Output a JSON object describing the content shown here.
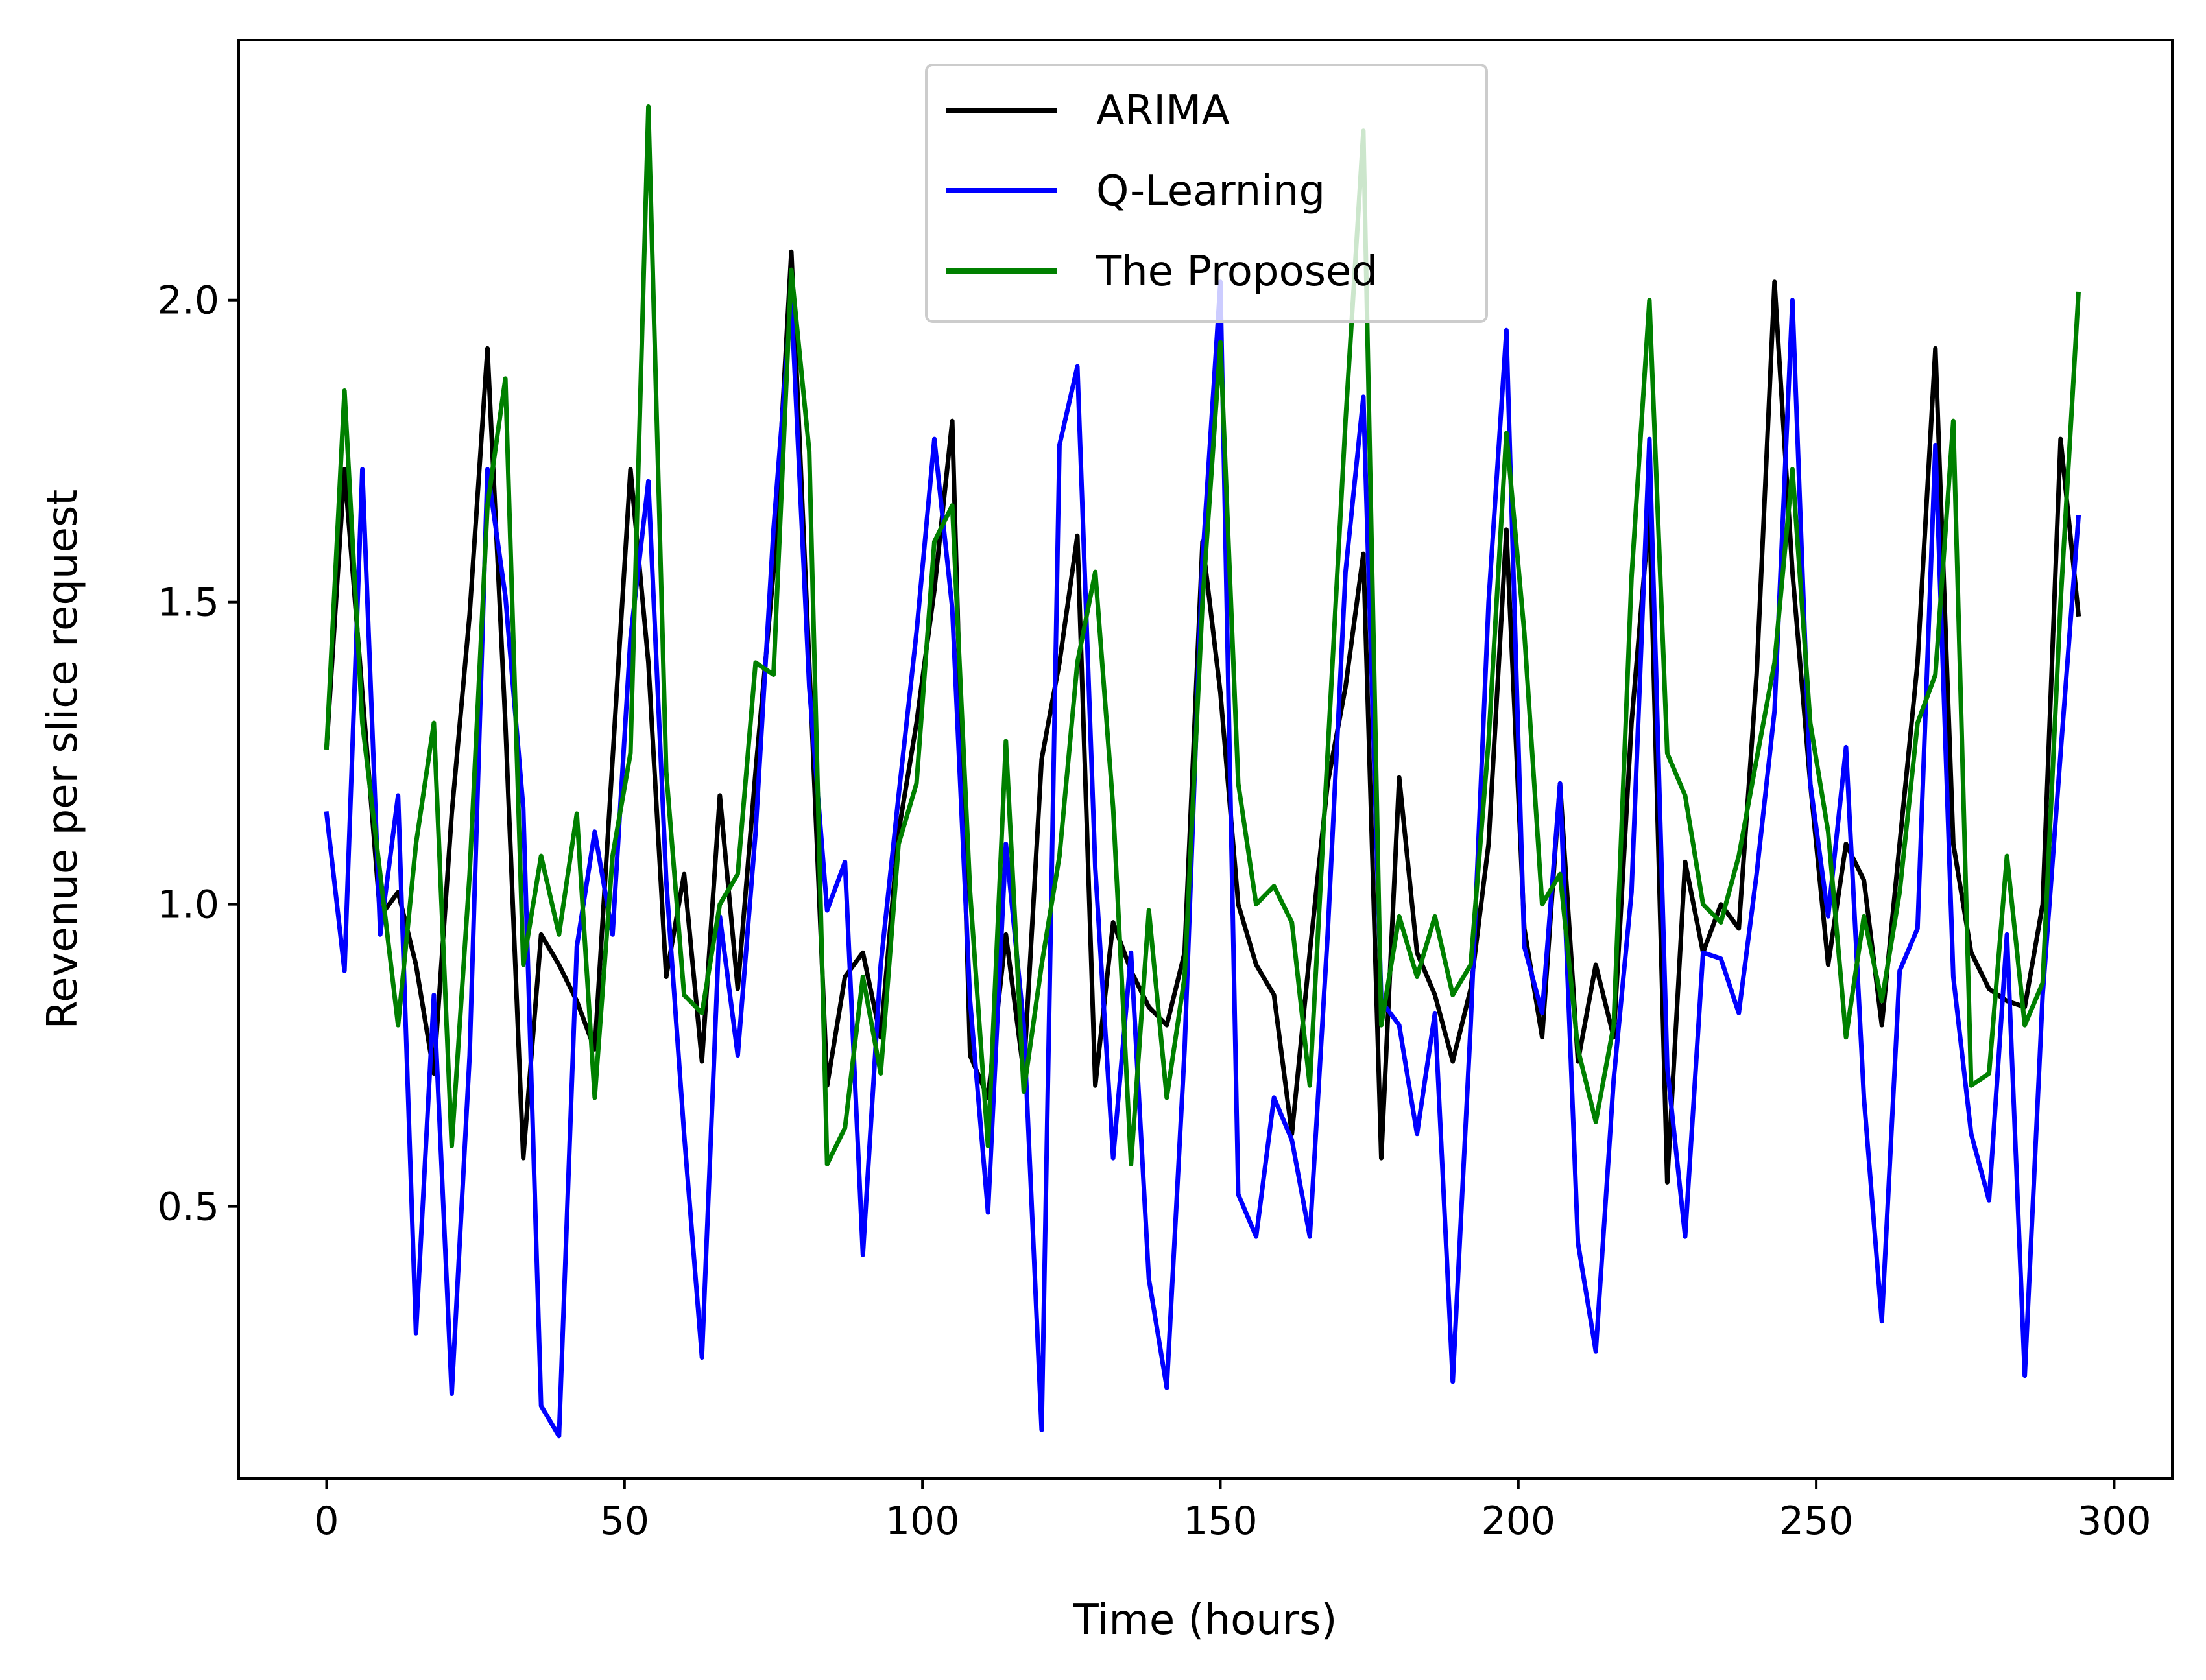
{
  "chart_data": {
    "type": "line",
    "title": "",
    "xlabel": "Time (hours)",
    "ylabel": "Revenue per slice request",
    "xlim": [
      -14.75,
      309.75
    ],
    "ylim": [
      0.05,
      2.43
    ],
    "xticks": [
      0,
      50,
      100,
      150,
      200,
      250,
      300
    ],
    "xtick_labels": [
      "0",
      "50",
      "100",
      "150",
      "200",
      "250",
      "300"
    ],
    "yticks": [
      0.5,
      1.0,
      1.5,
      2.0
    ],
    "ytick_labels": [
      "0.5",
      "1.0",
      "1.5",
      "2.0"
    ],
    "grid": false,
    "legend_position": "upper center",
    "x": [
      0,
      3,
      6,
      9,
      12,
      15,
      18,
      21,
      24,
      27,
      30,
      33,
      36,
      39,
      42,
      45,
      48,
      51,
      54,
      57,
      60,
      63,
      66,
      69,
      72,
      75,
      78,
      81,
      84,
      87,
      90,
      93,
      96,
      99,
      102,
      105,
      108,
      111,
      114,
      117,
      120,
      123,
      126,
      129,
      132,
      135,
      138,
      141,
      144,
      147,
      150,
      153,
      156,
      159,
      162,
      165,
      168,
      171,
      174,
      177,
      180,
      183,
      186,
      189,
      192,
      195,
      198,
      201,
      204,
      207,
      210,
      213,
      216,
      219,
      222,
      225,
      228,
      231,
      234,
      237,
      240,
      243,
      246,
      249,
      252,
      255,
      258,
      261,
      264,
      267,
      270,
      273,
      276,
      279,
      282,
      285,
      288,
      291,
      294
    ],
    "series": [
      {
        "name": "ARIMA",
        "color": "#000000",
        "values": [
          1.26,
          1.72,
          1.35,
          0.98,
          1.02,
          0.9,
          0.72,
          1.15,
          1.48,
          1.92,
          1.3,
          0.58,
          0.95,
          0.9,
          0.84,
          0.76,
          1.24,
          1.72,
          1.4,
          0.88,
          1.05,
          0.74,
          1.18,
          0.86,
          1.22,
          1.55,
          2.08,
          1.4,
          0.7,
          0.88,
          0.92,
          0.78,
          1.12,
          1.3,
          1.52,
          1.8,
          0.75,
          0.68,
          0.95,
          0.72,
          1.24,
          1.4,
          1.61,
          0.7,
          0.97,
          0.89,
          0.83,
          0.8,
          0.92,
          1.6,
          1.35,
          1.0,
          0.9,
          0.85,
          0.62,
          0.92,
          1.2,
          1.36,
          1.58,
          0.58,
          1.21,
          0.92,
          0.85,
          0.74,
          0.86,
          1.1,
          1.62,
          0.96,
          0.78,
          1.2,
          0.74,
          0.9,
          0.78,
          1.3,
          1.65,
          0.54,
          1.07,
          0.92,
          1.0,
          0.96,
          1.38,
          2.03,
          1.55,
          1.2,
          0.9,
          1.1,
          1.04,
          0.8,
          1.1,
          1.4,
          1.92,
          1.1,
          0.92,
          0.86,
          0.84,
          0.83,
          1.0,
          1.77,
          1.48
        ]
      },
      {
        "name": "Q-Learning",
        "color": "#0000ff",
        "values": [
          1.15,
          0.89,
          1.72,
          0.95,
          1.18,
          0.29,
          0.85,
          0.19,
          0.75,
          1.72,
          1.51,
          1.16,
          0.17,
          0.12,
          0.93,
          1.12,
          0.95,
          1.44,
          1.7,
          1.04,
          0.62,
          0.25,
          0.98,
          0.75,
          1.12,
          1.62,
          2.0,
          1.36,
          0.99,
          1.07,
          0.42,
          0.9,
          1.18,
          1.45,
          1.77,
          1.49,
          0.84,
          0.49,
          1.1,
          0.8,
          0.13,
          1.76,
          1.89,
          1.06,
          0.58,
          0.92,
          0.38,
          0.2,
          0.76,
          1.57,
          2.03,
          0.52,
          0.45,
          0.68,
          0.61,
          0.45,
          0.95,
          1.55,
          1.84,
          0.84,
          0.8,
          0.62,
          0.82,
          0.21,
          0.8,
          1.5,
          1.95,
          0.93,
          0.82,
          1.2,
          0.44,
          0.26,
          0.71,
          1.02,
          1.77,
          0.73,
          0.45,
          0.92,
          0.91,
          0.82,
          1.05,
          1.32,
          2.0,
          1.2,
          0.98,
          1.26,
          0.68,
          0.31,
          0.89,
          0.96,
          1.76,
          0.88,
          0.62,
          0.51,
          0.95,
          0.22,
          0.85,
          1.25,
          1.64
        ]
      },
      {
        "name": "The Proposed",
        "color": "#008000",
        "values": [
          1.26,
          1.85,
          1.3,
          1.05,
          0.8,
          1.1,
          1.3,
          0.6,
          1.05,
          1.66,
          1.87,
          0.9,
          1.08,
          0.95,
          1.15,
          0.68,
          1.08,
          1.25,
          2.32,
          1.22,
          0.85,
          0.82,
          1.0,
          1.05,
          1.4,
          1.38,
          2.05,
          1.75,
          0.57,
          0.63,
          0.88,
          0.72,
          1.1,
          1.2,
          1.6,
          1.66,
          1.02,
          0.6,
          1.27,
          0.69,
          0.9,
          1.08,
          1.4,
          1.55,
          1.16,
          0.57,
          0.99,
          0.68,
          0.88,
          1.5,
          1.93,
          1.2,
          1.0,
          1.03,
          0.97,
          0.7,
          1.25,
          1.8,
          2.28,
          0.8,
          0.98,
          0.88,
          0.98,
          0.85,
          0.9,
          1.27,
          1.78,
          1.45,
          1.0,
          1.05,
          0.76,
          0.64,
          0.8,
          1.54,
          2.0,
          1.25,
          1.18,
          1.0,
          0.97,
          1.08,
          1.24,
          1.4,
          1.72,
          1.3,
          1.12,
          0.78,
          0.98,
          0.84,
          1.02,
          1.3,
          1.38,
          1.8,
          0.7,
          0.72,
          1.08,
          0.8,
          0.87,
          1.5,
          2.01
        ]
      }
    ]
  }
}
